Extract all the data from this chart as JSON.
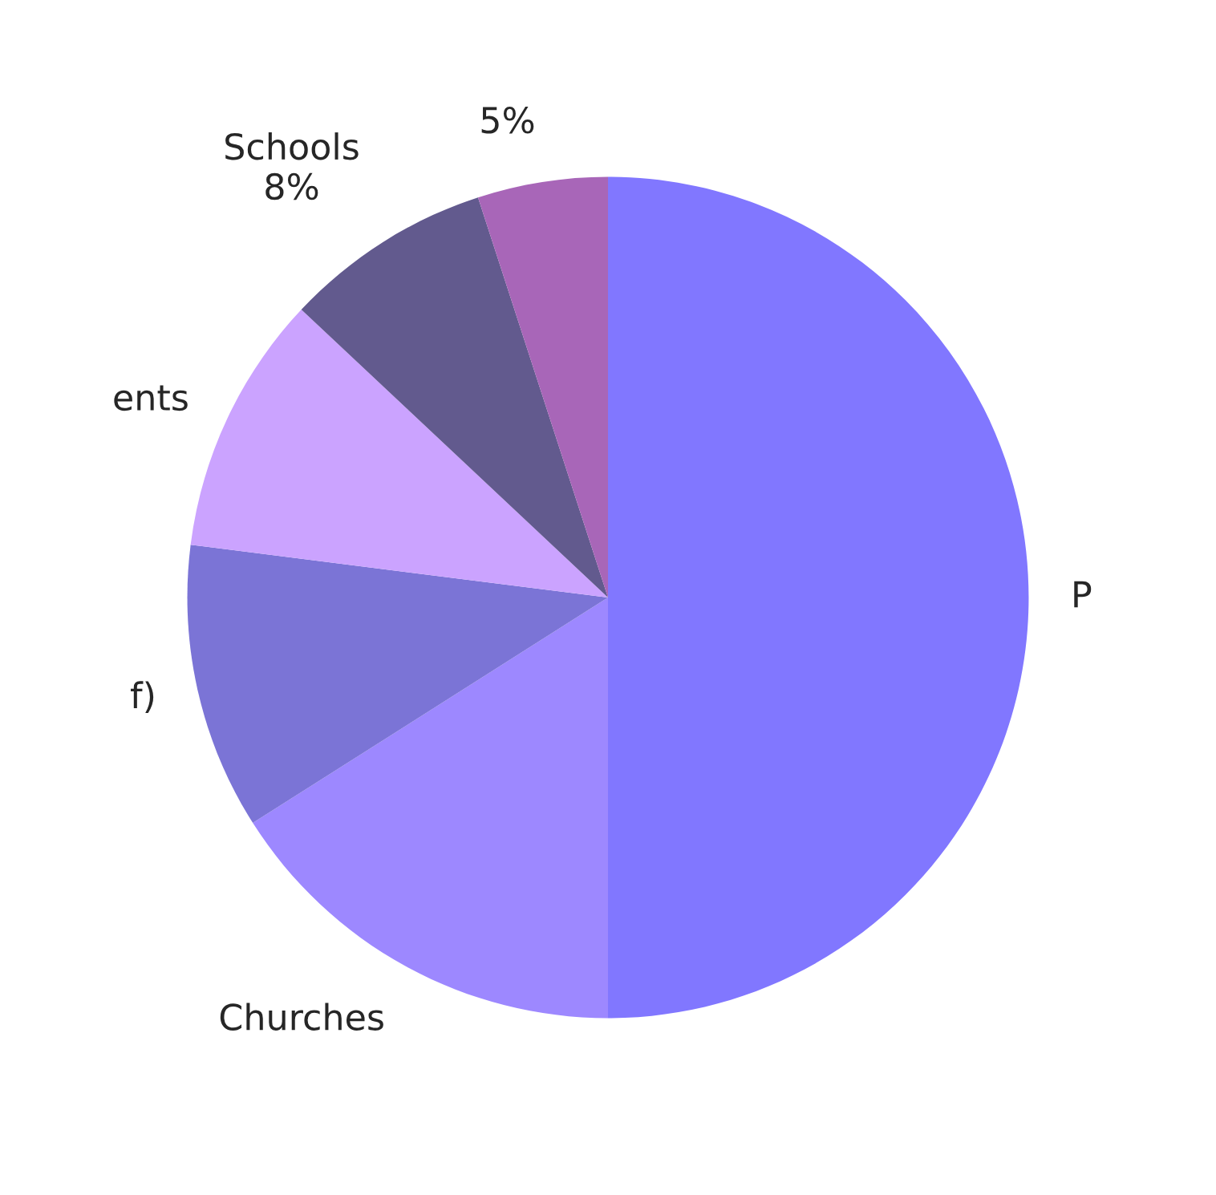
{
  "chart_data": {
    "type": "pie",
    "categories": [
      "P",
      "Churches",
      "f)",
      "ents",
      "Schools",
      null
    ],
    "values": [
      50,
      16,
      11,
      10,
      8,
      5
    ],
    "value_labels": [
      null,
      null,
      null,
      null,
      "8%",
      "5%"
    ],
    "colors": [
      "#8177ff",
      "#9d88ff",
      "#7b74d6",
      "#cba3ff",
      "#625a8e",
      "#a866b8"
    ]
  }
}
